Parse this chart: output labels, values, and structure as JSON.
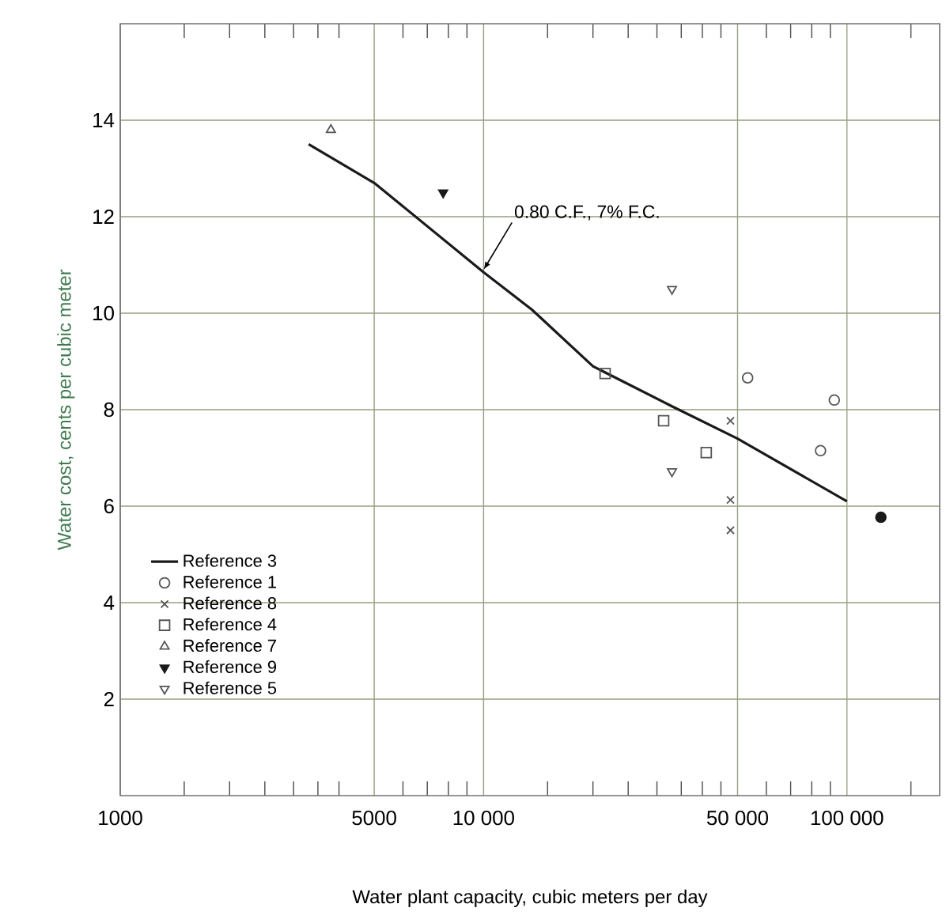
{
  "chart_data": {
    "type": "scatter",
    "xlabel": "Water plant capacity, cubic meters per day",
    "ylabel": "Water cost, cents per cubic meter",
    "log": "x",
    "xlim": [
      1000,
      180000
    ],
    "ylim": [
      0,
      16
    ],
    "xticks": [
      1000,
      {
        "value": 1500,
        "label": null
      },
      {
        "value": 2000,
        "label": null
      },
      {
        "value": 2500,
        "label": null
      },
      {
        "value": 3000,
        "label": null
      },
      {
        "value": 3500,
        "label": null
      },
      {
        "value": 4000,
        "label": null
      },
      5000,
      {
        "value": 6000,
        "label": null
      },
      {
        "value": 7000,
        "label": null
      },
      {
        "value": 8000,
        "label": null
      },
      {
        "value": 9000,
        "label": null
      },
      {
        "value": 10000,
        "label": "10 000"
      },
      {
        "value": 15000,
        "label": null
      },
      {
        "value": 20000,
        "label": null
      },
      {
        "value": 25000,
        "label": null
      },
      {
        "value": 30000,
        "label": null
      },
      {
        "value": 35000,
        "label": null
      },
      {
        "value": 40000,
        "label": null
      },
      {
        "value": 45000,
        "label": null
      },
      {
        "value": 50000,
        "label": "50 000"
      },
      {
        "value": 60000,
        "label": null
      },
      {
        "value": 70000,
        "label": null
      },
      {
        "value": 80000,
        "label": null
      },
      {
        "value": 90000,
        "label": null
      },
      {
        "value": 100000,
        "label": "100 000"
      },
      {
        "value": 150000,
        "label": null
      }
    ],
    "yticks": [
      2,
      4,
      6,
      8,
      10,
      12,
      14
    ],
    "grid": true,
    "legend": "bottom left",
    "annotations": [
      {
        "text": "0.80 C.F., 7% F.C.",
        "x": 10000,
        "y": 10.9
      }
    ],
    "series": [
      {
        "name": "Reference 3",
        "type": "line",
        "marker": "none",
        "color": "#1a1a1a",
        "x": [
          3300,
          5000,
          10000,
          13600,
          20000,
          33000,
          50000,
          100000
        ],
        "values": [
          13.5,
          12.7,
          10.85,
          10.07,
          8.9,
          8.07,
          7.4,
          6.1
        ]
      },
      {
        "name": "Reference 1",
        "marker": "circle",
        "color": "#555555",
        "x": [
          53300,
          92300,
          84600
        ],
        "values": [
          8.66,
          8.2,
          7.15
        ]
      },
      {
        "name": "Reference 8",
        "marker": "cross",
        "color": "#555555",
        "x": [
          47800,
          47800,
          47800
        ],
        "values": [
          7.77,
          6.13,
          5.5
        ]
      },
      {
        "name": "Reference 4",
        "marker": "square",
        "color": "#555555",
        "x": [
          21600,
          31300,
          41000
        ],
        "values": [
          8.75,
          7.77,
          7.11
        ]
      },
      {
        "name": "Reference 7",
        "marker": "triangle",
        "color": "#555555",
        "x": [
          3800
        ],
        "values": [
          13.8
        ]
      },
      {
        "name": "Reference 9",
        "marker": "triangle-down-filled",
        "color": "#1a1a1a",
        "x": [
          7740
        ],
        "values": [
          12.5
        ]
      },
      {
        "name": "Reference 5",
        "marker": "triangle-down",
        "color": "#555555",
        "x": [
          33000,
          33000
        ],
        "values": [
          10.5,
          6.72
        ]
      },
      {
        "marker": "circle-filled",
        "color": "#1a1a1a",
        "x": [
          124000
        ],
        "values": [
          5.77
        ]
      }
    ]
  }
}
